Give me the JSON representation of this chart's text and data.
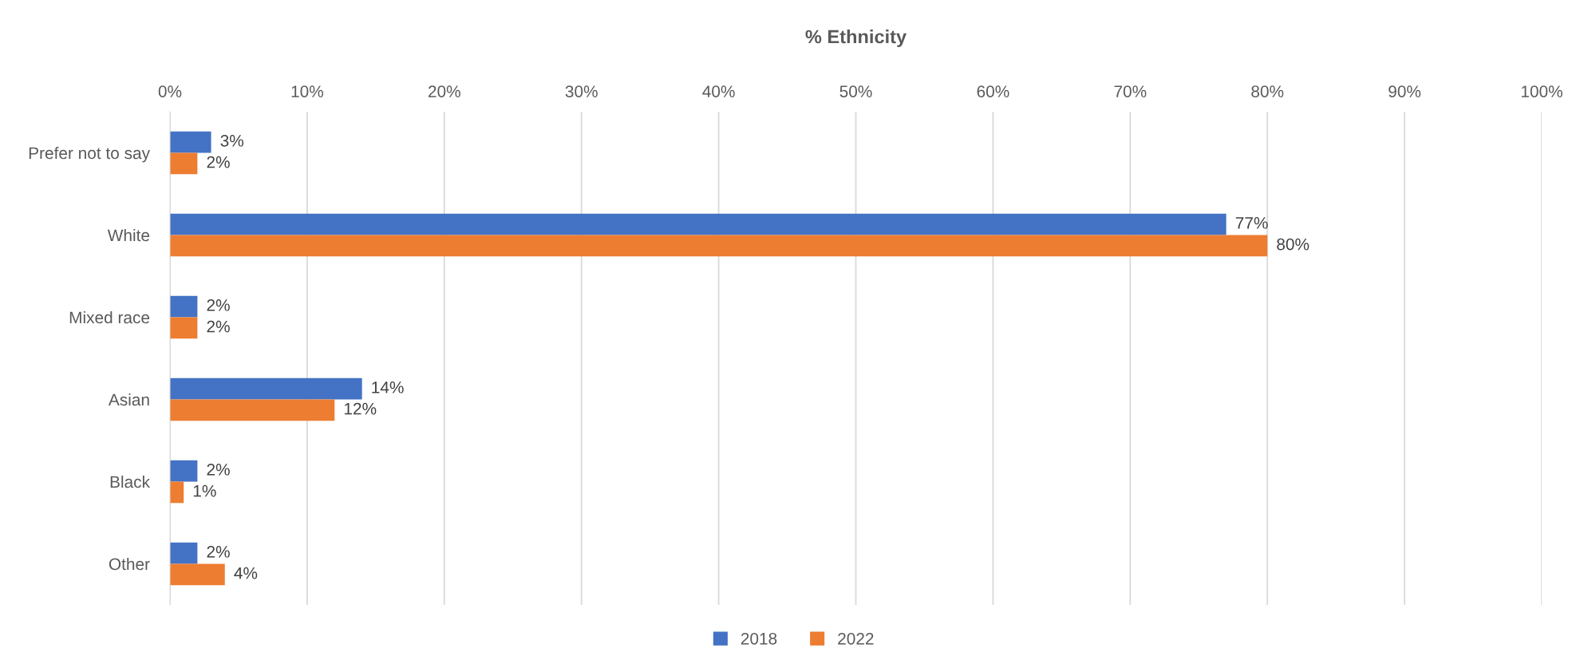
{
  "chart_data": {
    "type": "bar",
    "orientation": "horizontal",
    "title": "% Ethnicity",
    "categories": [
      "Prefer not to say",
      "White",
      "Mixed race",
      "Asian",
      "Black",
      "Other"
    ],
    "series": [
      {
        "name": "2018",
        "color": "#4472c4",
        "values": [
          3,
          77,
          2,
          14,
          2,
          2
        ],
        "value_labels": [
          "3%",
          "77%",
          "2%",
          "14%",
          "2%",
          "2%"
        ]
      },
      {
        "name": "2022",
        "color": "#ed7d31",
        "values": [
          2,
          80,
          2,
          12,
          1,
          4
        ],
        "value_labels": [
          "2%",
          "80%",
          "2%",
          "12%",
          "1%",
          "4%"
        ]
      }
    ],
    "xlim": [
      0,
      100
    ],
    "xticks": [
      {
        "value": 0,
        "label": "0%"
      },
      {
        "value": 10,
        "label": "10%"
      },
      {
        "value": 20,
        "label": "20%"
      },
      {
        "value": 30,
        "label": "30%"
      },
      {
        "value": 40,
        "label": "40%"
      },
      {
        "value": 50,
        "label": "50%"
      },
      {
        "value": 60,
        "label": "60%"
      },
      {
        "value": 70,
        "label": "70%"
      },
      {
        "value": 80,
        "label": "80%"
      },
      {
        "value": 90,
        "label": "90%"
      },
      {
        "value": 100,
        "label": "100%"
      }
    ],
    "grid": "x",
    "legend": "bottom"
  }
}
